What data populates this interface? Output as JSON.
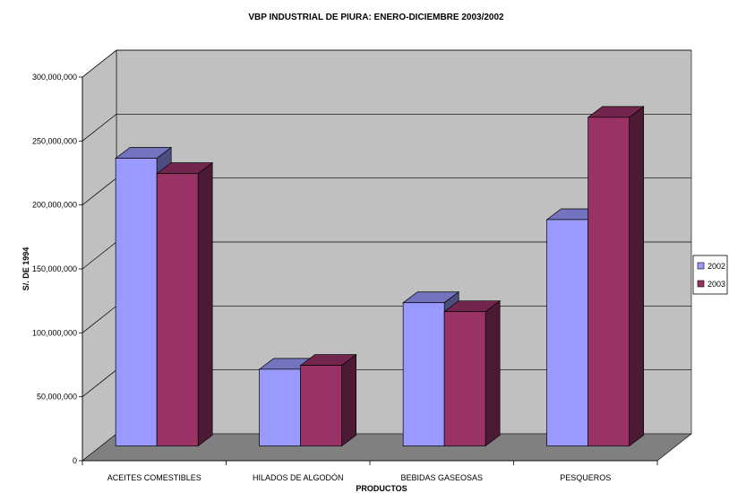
{
  "chart_data": {
    "type": "bar",
    "title": "VBP INDUSTRIAL DE PIURA: ENERO-DICIEMBRE 2003/2002",
    "xlabel": "PRODUCTOS",
    "ylabel": "S/. DE 1994",
    "categories": [
      "ACEITES COMESTIBLES",
      "HILADOS DE ALGODÓN",
      "BEBIDAS GASEOSAS",
      "PESQUEROS"
    ],
    "series": [
      {
        "name": "2002",
        "values": [
          225000000,
          60000000,
          112000000,
          177000000
        ],
        "color": "#9999ff"
      },
      {
        "name": "2003",
        "values": [
          213000000,
          63000000,
          105000000,
          257000000
        ],
        "color": "#993366"
      }
    ],
    "ylim": [
      0,
      300000000
    ],
    "yticks": [
      0,
      50000000,
      100000000,
      150000000,
      200000000,
      250000000,
      300000000
    ],
    "ytick_labels": [
      "0",
      "50,000,000",
      "100,000,000",
      "150,000,000",
      "200,000,000",
      "250,000,000",
      "300,000,000"
    ],
    "grid": true,
    "legend": "right",
    "style": "3d-clustered-column",
    "colors": {
      "wall": "#c0c0c0",
      "floor": "#808080"
    }
  }
}
